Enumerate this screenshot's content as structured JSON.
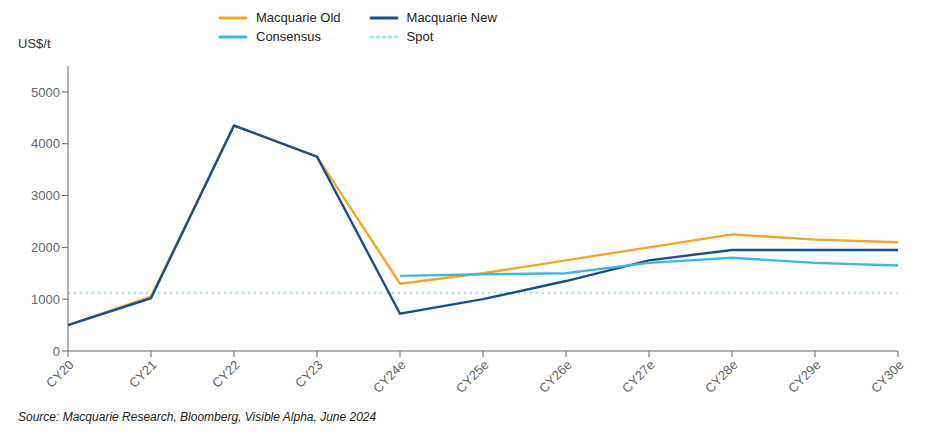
{
  "chart_data": {
    "type": "line",
    "categories": [
      "CY20",
      "CY21",
      "CY22",
      "CY23",
      "CY24e",
      "CY25e",
      "CY26e",
      "CY27e",
      "CY28e",
      "CY29e",
      "CY30e"
    ],
    "series": [
      {
        "name": "Macquarie Old",
        "color": "#F5A623",
        "line_style": "solid",
        "values": [
          500,
          1050,
          4350,
          3750,
          1300,
          1500,
          1750,
          2000,
          2250,
          2150,
          2100
        ]
      },
      {
        "name": "Macquarie New",
        "color": "#1B4F8A",
        "line_style": "solid",
        "values": [
          500,
          1020,
          4350,
          3750,
          720,
          1000,
          1350,
          1750,
          1950,
          1950,
          1950
        ]
      },
      {
        "name": "Consensus",
        "color": "#3DB8E0",
        "line_style": "solid",
        "values": [
          null,
          null,
          null,
          null,
          1450,
          1480,
          1500,
          1700,
          1800,
          1700,
          1650
        ]
      },
      {
        "name": "Spot",
        "color": "#A8E4F5",
        "line_style": "dotted",
        "value": 1120
      }
    ],
    "ylabel": "US$/t",
    "ylim": [
      0,
      5500
    ],
    "yticks": [
      0,
      1000,
      2000,
      3000,
      4000,
      5000
    ],
    "grid": false,
    "legend": "top",
    "source": "Source: Macquarie Research, Bloomberg, Visible Alpha, June 2024"
  }
}
